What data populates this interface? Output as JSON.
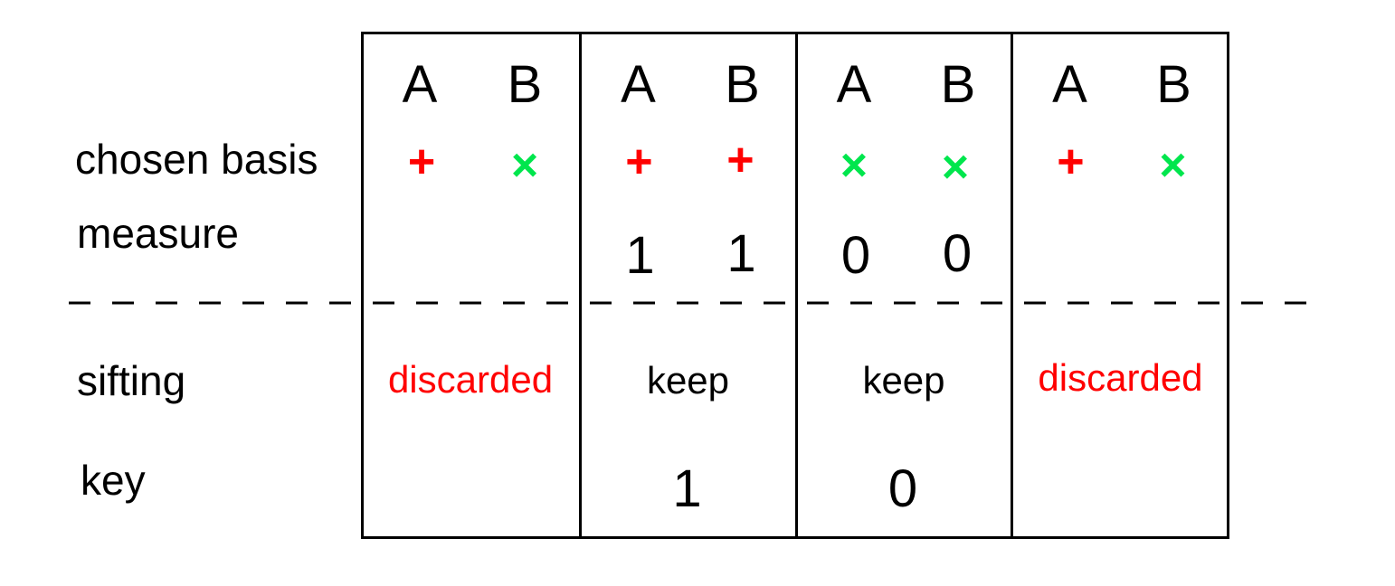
{
  "row_labels": {
    "chosen_basis": "chosen basis",
    "measure": "measure",
    "sifting": "sifting",
    "key": "key"
  },
  "colors": {
    "rectilinear": "#ff0000",
    "diagonal": "#00e64d",
    "discarded": "#ff0000",
    "keep": "#000000"
  },
  "columns": [
    {
      "party_a": "A",
      "party_b": "B",
      "basis_a": "+",
      "basis_a_type": "rectilinear",
      "basis_b": "×",
      "basis_b_type": "diagonal",
      "measure_a": "",
      "measure_b": "",
      "sifting": "discarded",
      "sifting_type": "discarded",
      "key": ""
    },
    {
      "party_a": "A",
      "party_b": "B",
      "basis_a": "+",
      "basis_a_type": "rectilinear",
      "basis_b": "+",
      "basis_b_type": "rectilinear",
      "measure_a": "1",
      "measure_b": "1",
      "sifting": "keep",
      "sifting_type": "keep",
      "key": "1"
    },
    {
      "party_a": "A",
      "party_b": "B",
      "basis_a": "×",
      "basis_a_type": "diagonal",
      "basis_b": "×",
      "basis_b_type": "diagonal",
      "measure_a": "0",
      "measure_b": "0",
      "sifting": "keep",
      "sifting_type": "keep",
      "key": "0"
    },
    {
      "party_a": "A",
      "party_b": "B",
      "basis_a": "+",
      "basis_a_type": "rectilinear",
      "basis_b": "×",
      "basis_b_type": "diagonal",
      "measure_a": "",
      "measure_b": "",
      "sifting": "discarded",
      "sifting_type": "discarded",
      "key": ""
    }
  ]
}
